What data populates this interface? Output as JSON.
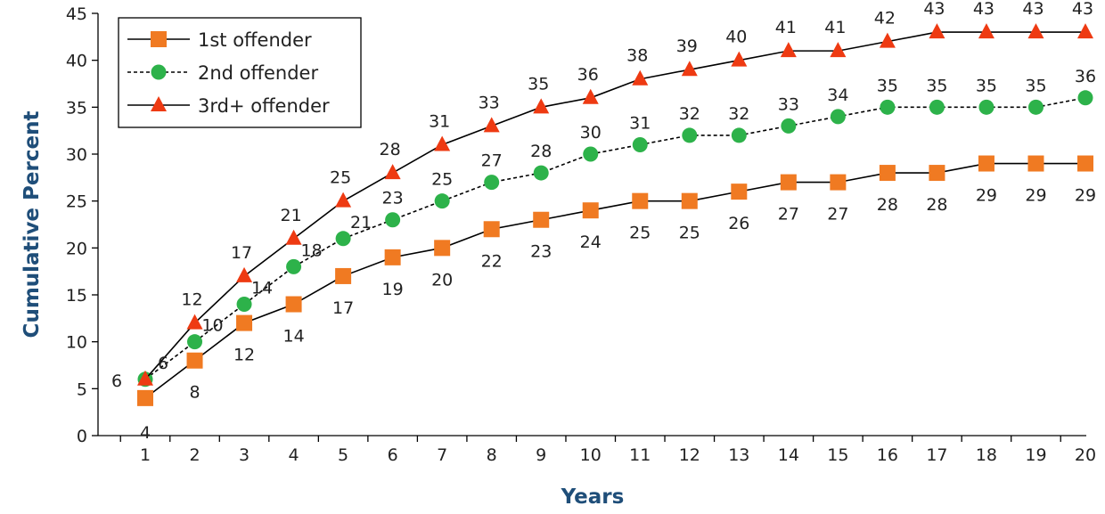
{
  "chart_data": {
    "type": "line",
    "xlabel": "Years",
    "ylabel": "Cumulative Percent",
    "x": [
      1,
      2,
      3,
      4,
      5,
      6,
      7,
      8,
      9,
      10,
      11,
      12,
      13,
      14,
      15,
      16,
      17,
      18,
      19,
      20
    ],
    "ylim": [
      0,
      45
    ],
    "yticks": [
      0,
      5,
      10,
      15,
      20,
      25,
      30,
      35,
      40,
      45
    ],
    "xticks": [
      1,
      2,
      3,
      4,
      5,
      6,
      7,
      8,
      9,
      10,
      11,
      12,
      13,
      14,
      15,
      16,
      17,
      18,
      19,
      20
    ],
    "grid": false,
    "legend_position": "top-left",
    "series": [
      {
        "name": "1st offender",
        "marker": "square",
        "line_style": "solid",
        "marker_color": "#F07A22",
        "line_color": "#000000",
        "values": [
          4,
          8,
          12,
          14,
          17,
          19,
          20,
          22,
          23,
          24,
          25,
          25,
          26,
          27,
          27,
          28,
          28,
          29,
          29,
          29
        ]
      },
      {
        "name": "2nd offender",
        "marker": "circle",
        "line_style": "dashed",
        "marker_color": "#2DB24A",
        "line_color": "#000000",
        "values": [
          6,
          10,
          14,
          18,
          21,
          23,
          25,
          27,
          28,
          30,
          31,
          32,
          32,
          33,
          34,
          35,
          35,
          35,
          35,
          36
        ]
      },
      {
        "name": "3rd+ offender",
        "marker": "triangle",
        "line_style": "solid",
        "marker_color": "#EE3A12",
        "line_color": "#000000",
        "values": [
          6,
          12,
          17,
          21,
          25,
          28,
          31,
          33,
          35,
          36,
          38,
          39,
          40,
          41,
          41,
          42,
          43,
          43,
          43,
          43
        ]
      }
    ],
    "axis_title_color": "#1F4E79"
  }
}
